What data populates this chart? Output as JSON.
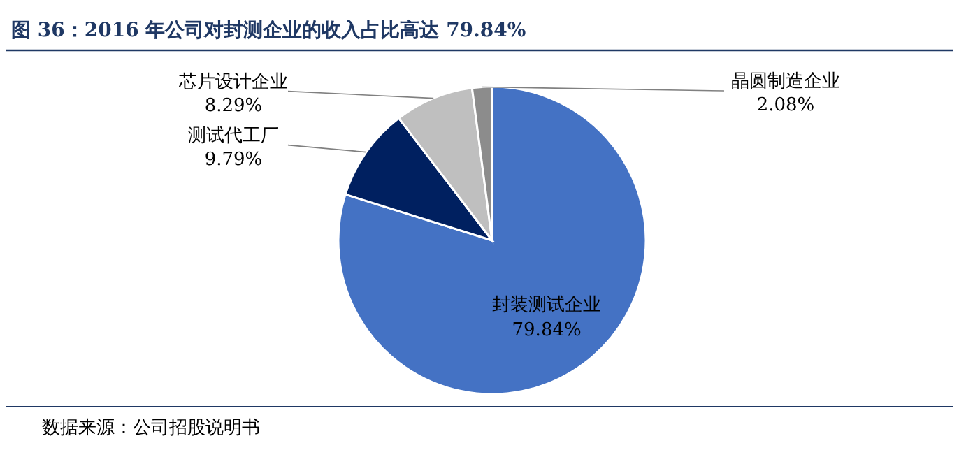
{
  "chart_data": {
    "type": "pie",
    "title": "图 36：2016 年公司对封测企业的收入占比高达 79.84%",
    "categories": [
      "封装测试企业",
      "测试代工厂",
      "芯片设计企业",
      "晶圆制造企业"
    ],
    "values": [
      79.84,
      9.79,
      8.29,
      2.08
    ],
    "colors": [
      "#4472c4",
      "#002060",
      "#bfbfbf",
      "#8c8c8c"
    ],
    "value_labels": [
      "79.84%",
      "9.79%",
      "8.29%",
      "2.08%"
    ],
    "annotations": [
      "数据来源：公司招股说明书"
    ]
  }
}
